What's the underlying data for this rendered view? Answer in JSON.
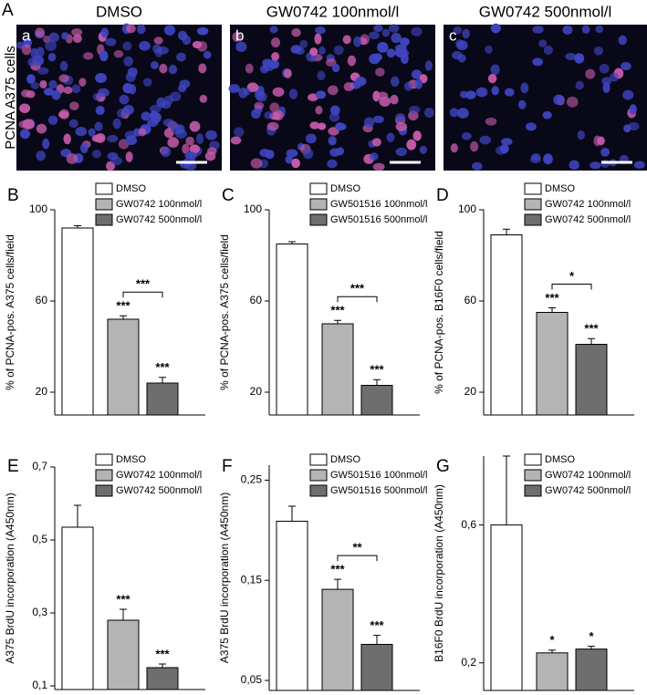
{
  "figure": {
    "panel": "A",
    "row_label": "PCNA A375 cells",
    "images": [
      {
        "letter": "a",
        "title": "DMSO"
      },
      {
        "letter": "b",
        "title": "GW0742 100nmol/l"
      },
      {
        "letter": "c",
        "title": "GW0742 500nmol/l"
      }
    ]
  },
  "chart_data": [
    {
      "type": "bar",
      "panel": "B",
      "ylabel": "% of PCNA-pos. A375 cells/field",
      "ylim": [
        10,
        100
      ],
      "yticks": [
        20,
        60,
        100
      ],
      "series": [
        {
          "name": "DMSO",
          "color": "#ffffff",
          "values": [
            92
          ],
          "errors": [
            1
          ]
        },
        {
          "name": "GW0742 100nmol/l",
          "color": "#b4b4b4",
          "values": [
            52
          ],
          "errors": [
            1.5
          ],
          "significance": "***"
        },
        {
          "name": "GW0742 500nmol/l",
          "color": "#6e6e6e",
          "values": [
            24
          ],
          "errors": [
            2.5
          ],
          "significance": "***"
        }
      ],
      "bracket": "***"
    },
    {
      "type": "bar",
      "panel": "C",
      "ylabel": "% of PCNA-pos. A375 cells/field",
      "ylim": [
        10,
        100
      ],
      "yticks": [
        20,
        60,
        100
      ],
      "series": [
        {
          "name": "DMSO",
          "color": "#ffffff",
          "values": [
            85
          ],
          "errors": [
            1
          ]
        },
        {
          "name": "GW501516 100nmol/l",
          "color": "#b4b4b4",
          "values": [
            50
          ],
          "errors": [
            1.5
          ],
          "significance": "***"
        },
        {
          "name": "GW501516 500nmol/l",
          "color": "#6e6e6e",
          "values": [
            23
          ],
          "errors": [
            2.5
          ],
          "significance": "***"
        }
      ],
      "bracket": "***"
    },
    {
      "type": "bar",
      "panel": "D",
      "ylabel": "% of PCNA-pos. B16F0 cells/field",
      "ylim": [
        10,
        100
      ],
      "yticks": [
        20,
        60,
        100
      ],
      "series": [
        {
          "name": "DMSO",
          "color": "#ffffff",
          "values": [
            89
          ],
          "errors": [
            2.5
          ]
        },
        {
          "name": "GW0742 100nmol/l",
          "color": "#b4b4b4",
          "values": [
            55
          ],
          "errors": [
            2
          ],
          "significance": "***"
        },
        {
          "name": "GW0742 500nmol/l",
          "color": "#6e6e6e",
          "values": [
            41
          ],
          "errors": [
            2.5
          ],
          "significance": "***"
        }
      ],
      "bracket": "*"
    },
    {
      "type": "bar",
      "panel": "E",
      "ylabel": "A375 BrdU incorporation (A450nm)",
      "ylim": [
        0.09,
        0.7
      ],
      "yticks": [
        {
          "value": 0.1,
          "label": "0,1"
        },
        {
          "value": 0.3,
          "label": "0,3"
        },
        {
          "value": 0.5,
          "label": "0,5"
        },
        {
          "value": 0.7,
          "label": "0,7"
        }
      ],
      "series": [
        {
          "name": "DMSO",
          "color": "#ffffff",
          "values": [
            0.535
          ],
          "errors": [
            0.06
          ]
        },
        {
          "name": "GW0742 100nmol/l",
          "color": "#b4b4b4",
          "values": [
            0.28
          ],
          "errors": [
            0.03
          ],
          "significance": "***"
        },
        {
          "name": "GW0742 500nmol/l",
          "color": "#6e6e6e",
          "values": [
            0.15
          ],
          "errors": [
            0.01
          ],
          "significance": "***"
        }
      ]
    },
    {
      "type": "bar",
      "panel": "F",
      "ylabel": "A375 BrdU incorporation (A450nm)",
      "ylim": [
        0.04,
        0.265
      ],
      "yticks": [
        {
          "value": 0.05,
          "label": "0,05"
        },
        {
          "value": 0.15,
          "label": "0,15"
        },
        {
          "value": 0.25,
          "label": "0,25"
        }
      ],
      "series": [
        {
          "name": "DMSO",
          "color": "#ffffff",
          "values": [
            0.209
          ],
          "errors": [
            0.015
          ]
        },
        {
          "name": "GW501516 100nmol/l",
          "color": "#b4b4b4",
          "values": [
            0.141
          ],
          "errors": [
            0.01
          ],
          "significance": "***"
        },
        {
          "name": "GW501516 500nmol/l",
          "color": "#6e6e6e",
          "values": [
            0.086
          ],
          "errors": [
            0.009
          ],
          "significance": "***"
        }
      ],
      "bracket": "**"
    },
    {
      "type": "bar",
      "panel": "G",
      "ylabel": "B16F0 BrdU incorporation (A450nm)",
      "ylim": [
        0.12,
        0.8
      ],
      "yticks": [
        {
          "value": 0.2,
          "label": "0,2"
        },
        {
          "value": 0.6,
          "label": "0,6"
        }
      ],
      "series": [
        {
          "name": "DMSO",
          "color": "#ffffff",
          "values": [
            0.6
          ],
          "errors": [
            0.2
          ]
        },
        {
          "name": "GW0742 100nmol/l",
          "color": "#b4b4b4",
          "values": [
            0.229
          ],
          "errors": [
            0.008
          ],
          "significance": "*"
        },
        {
          "name": "GW0742 500nmol/l",
          "color": "#6e6e6e",
          "values": [
            0.24
          ],
          "errors": [
            0.008
          ],
          "significance": "*"
        }
      ]
    }
  ]
}
